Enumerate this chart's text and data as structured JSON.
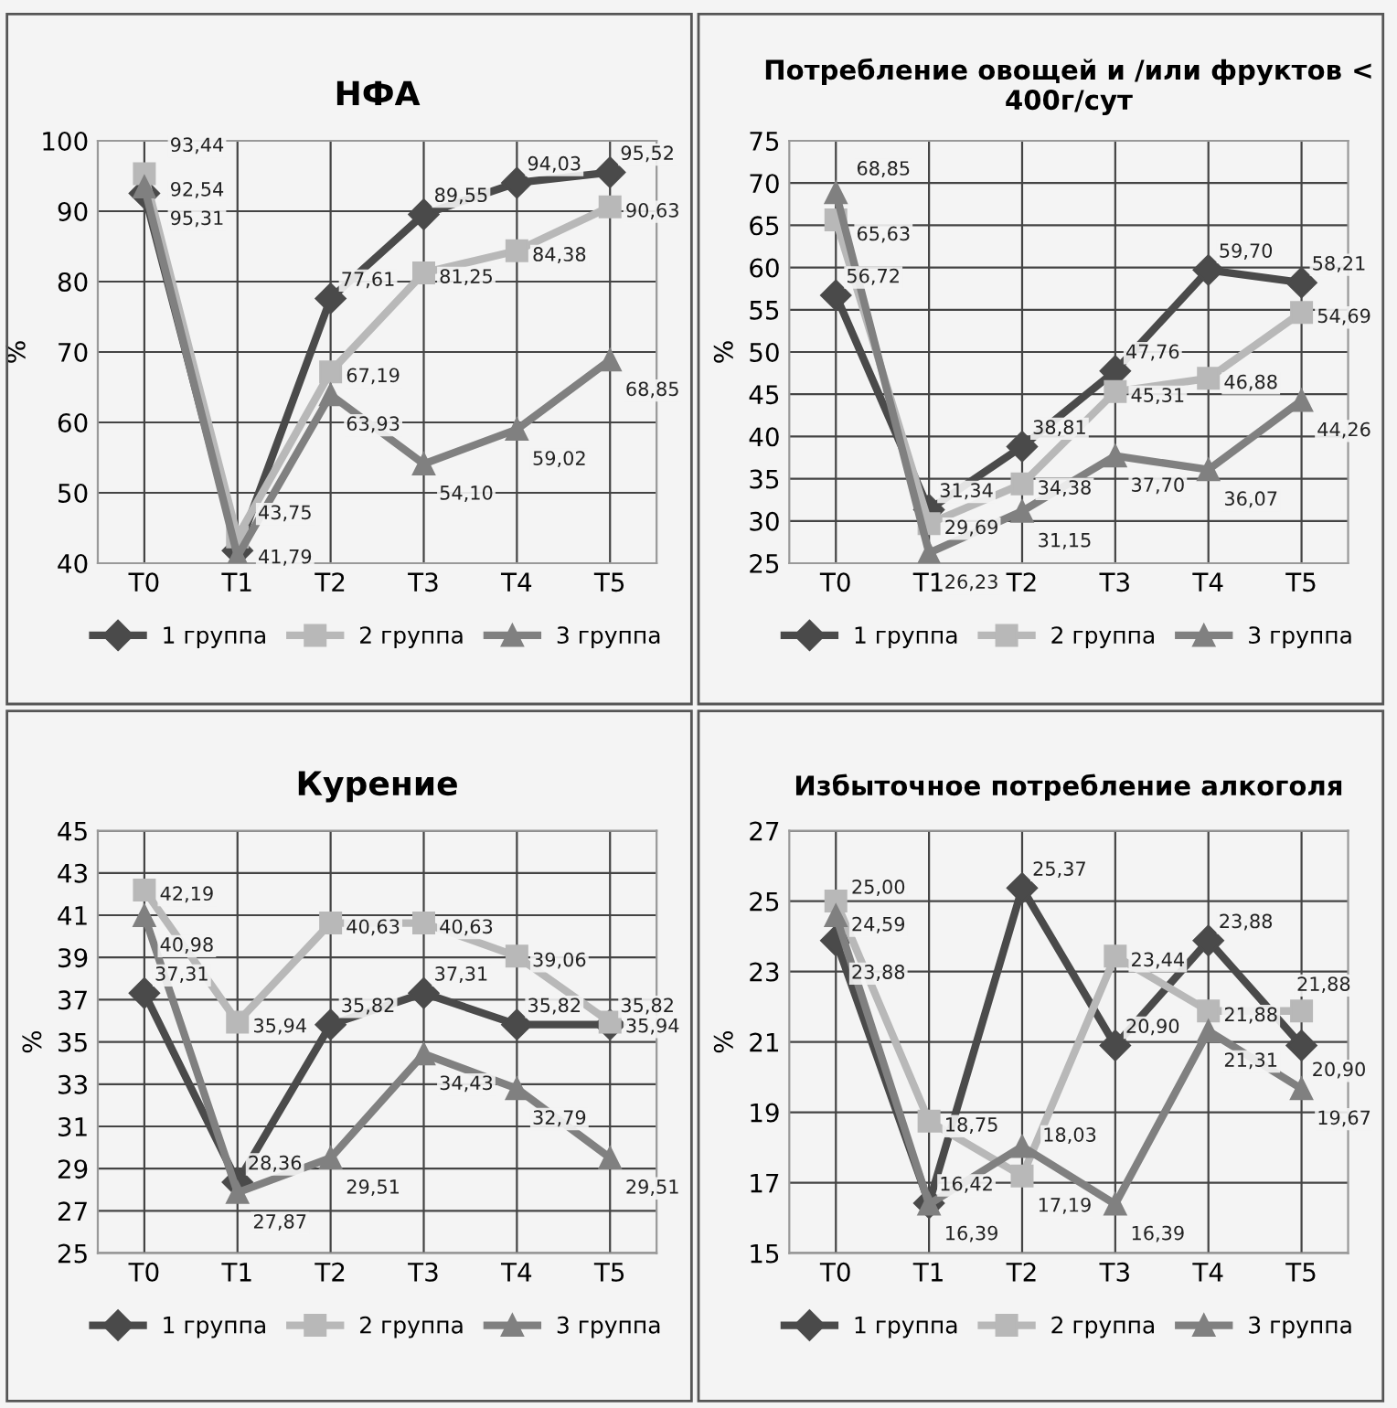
{
  "chart_data": [
    {
      "type": "line",
      "title": "НФА",
      "ylabel": "%",
      "categories": [
        "T0",
        "T1",
        "T2",
        "T3",
        "T4",
        "T5"
      ],
      "ylim": [
        40,
        100
      ],
      "yticks": [
        40,
        50,
        60,
        70,
        80,
        90,
        100
      ],
      "grid": true,
      "legend": "bottom",
      "series": [
        {
          "name": "1 группа",
          "color": "#4a4a4a",
          "marker": "diamond",
          "values": [
            92.54,
            41.79,
            77.61,
            89.55,
            94.03,
            95.52
          ],
          "value_labels": [
            "92,54",
            "41,79",
            "77,61",
            "89,55",
            "94,03",
            "95,52"
          ]
        },
        {
          "name": "2 группа",
          "color": "#b8b8b8",
          "marker": "square",
          "values": [
            95.31,
            43.75,
            67.19,
            81.25,
            84.38,
            90.63
          ],
          "value_labels": [
            "95,31",
            "43,75",
            "67,19",
            "81,25",
            "84,38",
            "90,63"
          ]
        },
        {
          "name": "3 группа",
          "color": "#808080",
          "marker": "triangle",
          "values": [
            93.44,
            41,
            63.93,
            54.1,
            59.02,
            68.85
          ],
          "value_labels": [
            "93,44",
            null,
            "63,93",
            "54,10",
            "59,02",
            "68,85"
          ]
        }
      ]
    },
    {
      "type": "line",
      "title": "Потребление овощей и /или фруктов < 400г/сут",
      "ylabel": "%",
      "categories": [
        "T0",
        "T1",
        "T2",
        "T3",
        "T4",
        "T5"
      ],
      "ylim": [
        25,
        75
      ],
      "yticks": [
        25,
        30,
        35,
        40,
        45,
        50,
        55,
        60,
        65,
        70,
        75
      ],
      "grid": true,
      "legend": "bottom",
      "series": [
        {
          "name": "1 группа",
          "color": "#4a4a4a",
          "marker": "diamond",
          "values": [
            56.72,
            31.34,
            38.81,
            47.76,
            59.7,
            58.21
          ],
          "value_labels": [
            "56,72",
            "31,34",
            "38,81",
            "47,76",
            "59,70",
            "58,21"
          ]
        },
        {
          "name": "2 группа",
          "color": "#b8b8b8",
          "marker": "square",
          "values": [
            65.63,
            29.69,
            34.38,
            45.31,
            46.88,
            54.69
          ],
          "value_labels": [
            "65,63",
            "29,69",
            "34,38",
            "45,31",
            "46,88",
            "54,69"
          ]
        },
        {
          "name": "3 группа",
          "color": "#808080",
          "marker": "triangle",
          "values": [
            68.85,
            26.23,
            31.15,
            37.7,
            36.07,
            44.26
          ],
          "value_labels": [
            "68,85",
            "26,23",
            "31,15",
            "37,70",
            "36,07",
            "44,26"
          ]
        }
      ]
    },
    {
      "type": "line",
      "title": "Курение",
      "ylabel": "%",
      "categories": [
        "T0",
        "T1",
        "T2",
        "T3",
        "T4",
        "T5"
      ],
      "ylim": [
        25,
        45
      ],
      "yticks": [
        25,
        27,
        29,
        31,
        33,
        35,
        37,
        39,
        41,
        43,
        45
      ],
      "grid": true,
      "legend": "bottom",
      "series": [
        {
          "name": "1 группа",
          "color": "#4a4a4a",
          "marker": "diamond",
          "values": [
            37.31,
            28.36,
            35.82,
            37.31,
            35.82,
            35.82
          ],
          "value_labels": [
            "37,31",
            "28,36",
            "35,82",
            "37,31",
            "35,82",
            "35,82"
          ]
        },
        {
          "name": "2 группа",
          "color": "#b8b8b8",
          "marker": "square",
          "values": [
            42.19,
            35.94,
            40.63,
            40.63,
            39.06,
            35.94
          ],
          "value_labels": [
            "42,19",
            "35,94",
            "40,63",
            "40,63",
            "39,06",
            "35,94"
          ]
        },
        {
          "name": "3 группа",
          "color": "#808080",
          "marker": "triangle",
          "values": [
            40.98,
            27.87,
            29.51,
            34.43,
            32.79,
            29.51
          ],
          "value_labels": [
            "40,98",
            "27,87",
            "29,51",
            "34,43",
            "32,79",
            "29,51"
          ]
        }
      ]
    },
    {
      "type": "line",
      "title": "Избыточное потребление алкоголя",
      "ylabel": "%",
      "categories": [
        "T0",
        "T1",
        "T2",
        "T3",
        "T4",
        "T5"
      ],
      "ylim": [
        15,
        27
      ],
      "yticks": [
        15,
        17,
        19,
        21,
        23,
        25,
        27
      ],
      "grid": true,
      "legend": "bottom",
      "series": [
        {
          "name": "1 группа",
          "color": "#4a4a4a",
          "marker": "diamond",
          "values": [
            23.88,
            16.42,
            25.37,
            20.9,
            23.88,
            20.9
          ],
          "value_labels": [
            "23,88",
            "16,42",
            "25,37",
            "20,90",
            "23,88",
            "20,90"
          ]
        },
        {
          "name": "2 группа",
          "color": "#b8b8b8",
          "marker": "square",
          "values": [
            25.0,
            18.75,
            17.19,
            23.44,
            21.88,
            21.88
          ],
          "value_labels": [
            "25,00",
            "18,75",
            "17,19",
            "23,44",
            "21,88",
            "21,88"
          ]
        },
        {
          "name": "3 группа",
          "color": "#808080",
          "marker": "triangle",
          "values": [
            24.59,
            16.39,
            18.03,
            16.39,
            21.31,
            19.67
          ],
          "value_labels": [
            "24,59",
            "16,39",
            "18,03",
            "16,39",
            "21,31",
            "19,67"
          ]
        }
      ]
    }
  ]
}
